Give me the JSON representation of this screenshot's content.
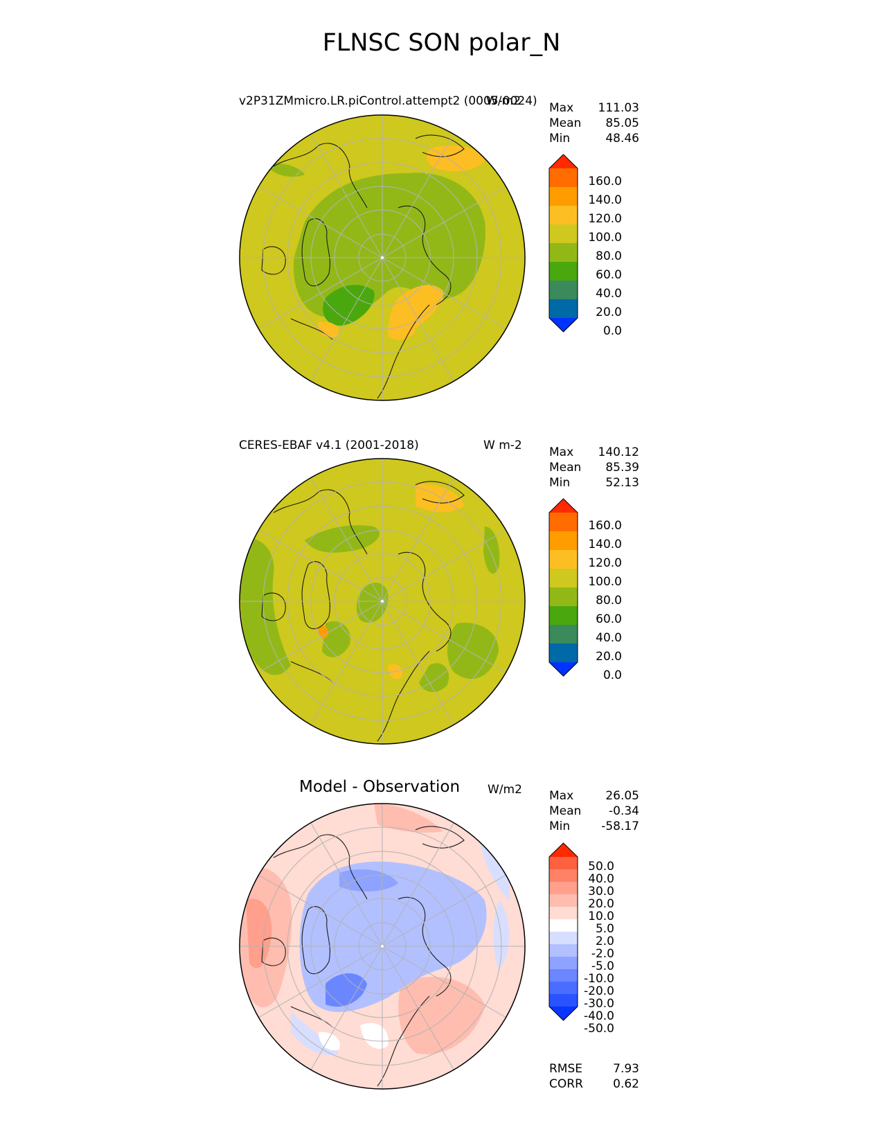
{
  "figure": {
    "title": "FLNSC SON polar_N"
  },
  "colors": {
    "abs_levels": [
      "#0033ff",
      "#006aa6",
      "#3a8a5c",
      "#4aa80e",
      "#92b818",
      "#cfc81e",
      "#fcbe22",
      "#ff9c00",
      "#ff6c00",
      "#ff2a00"
    ],
    "diff_levels": [
      "#0a35ff",
      "#2a52ff",
      "#4a6dff",
      "#6a87ff",
      "#8ea3ff",
      "#b2c0ff",
      "#d8deff",
      "#ffffff",
      "#ffdcd4",
      "#ffbdb0",
      "#ff9f8c",
      "#ff8266",
      "#ff6040",
      "#ff2a00"
    ]
  },
  "panels": [
    {
      "id": "model",
      "title": "v2P31ZMmicro.LR.piControl.attempt2 (0005-0024)",
      "units": "W/m2",
      "stats": [
        {
          "label": "Max",
          "value": "111.03"
        },
        {
          "label": "Mean",
          "value": "85.05"
        },
        {
          "label": "Min",
          "value": "48.46"
        }
      ],
      "colorbar_ticks": [
        "160.0",
        "140.0",
        "120.0",
        "100.0",
        "80.0",
        "60.0",
        "40.0",
        "20.0",
        "0.0"
      ]
    },
    {
      "id": "obs",
      "title": "CERES-EBAF v4.1 (2001-2018)",
      "units": "W m-2",
      "stats": [
        {
          "label": "Max",
          "value": "140.12"
        },
        {
          "label": "Mean",
          "value": "85.39"
        },
        {
          "label": "Min",
          "value": "52.13"
        }
      ],
      "colorbar_ticks": [
        "160.0",
        "140.0",
        "120.0",
        "100.0",
        "80.0",
        "60.0",
        "40.0",
        "20.0",
        "0.0"
      ]
    },
    {
      "id": "diff",
      "title": "Model - Observation",
      "units": "W/m2",
      "stats": [
        {
          "label": "Max",
          "value": "26.05"
        },
        {
          "label": "Mean",
          "value": "-0.34"
        },
        {
          "label": "Min",
          "value": "-58.17"
        }
      ],
      "colorbar_ticks": [
        "50.0",
        "40.0",
        "30.0",
        "20.0",
        "10.0",
        "5.0",
        "2.0",
        "-2.0",
        "-5.0",
        "-10.0",
        "-20.0",
        "-30.0",
        "-40.0",
        "-50.0"
      ],
      "metrics": [
        {
          "label": "RMSE",
          "value": "7.93"
        },
        {
          "label": "CORR",
          "value": "0.62"
        }
      ]
    }
  ]
}
